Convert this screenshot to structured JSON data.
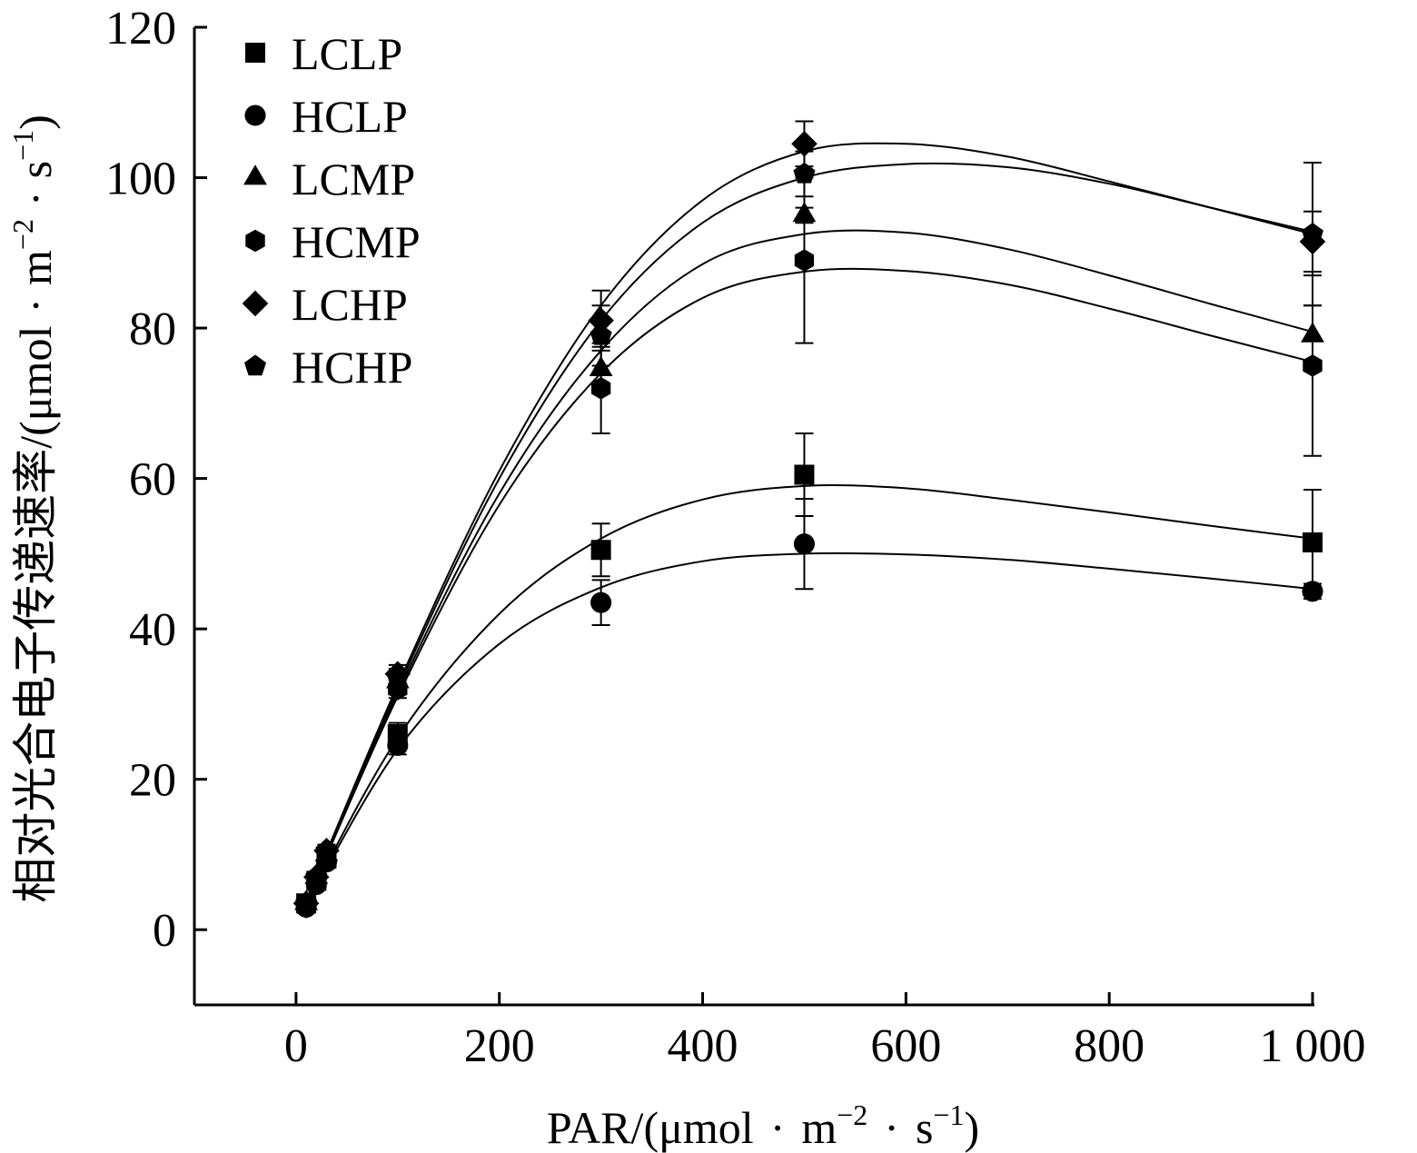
{
  "chart_data": {
    "type": "scatter",
    "xlabel_main": "PAR/(μmol",
    "xlabel_dot": "·",
    "xlabel_unit_m": "m",
    "xlabel_exp_m": "−2",
    "xlabel_unit_s": "s",
    "xlabel_exp_s": "−1",
    "xlabel_close": ")",
    "ylabel_main": "相对光合电子传递速率/(μmol",
    "ylabel_dot": "·",
    "ylabel_unit_m": "m",
    "ylabel_exp_m": "−2",
    "ylabel_unit_s": "s",
    "ylabel_exp_s": "−1",
    "ylabel_close": ")",
    "xlim": [
      -100,
      1000
    ],
    "ylim": [
      -10,
      120
    ],
    "x_ticks": [
      0,
      200,
      400,
      600,
      800,
      1000
    ],
    "x_tick_labels": [
      "0",
      "200",
      "400",
      "600",
      "800",
      "1 000"
    ],
    "y_ticks": [
      0,
      20,
      40,
      60,
      80,
      100,
      120
    ],
    "y_tick_labels": [
      "0",
      "20",
      "40",
      "60",
      "80",
      "100",
      "120"
    ],
    "grid": false,
    "legend_position": "top-left",
    "series": [
      {
        "name": "LCLP",
        "marker": "square",
        "x": [
          10,
          20,
          30,
          100,
          300,
          500,
          1000
        ],
        "y": [
          3.5,
          6.5,
          9.5,
          26,
          50.5,
          60.5,
          51.5
        ],
        "err": [
          0.5,
          0.5,
          0.8,
          1.5,
          3.5,
          5.5,
          7.0
        ],
        "fit": [
          [
            10,
            3.5
          ],
          [
            100,
            25.5
          ],
          [
            200,
            42
          ],
          [
            300,
            52
          ],
          [
            400,
            57.2
          ],
          [
            500,
            59
          ],
          [
            600,
            58.7
          ],
          [
            700,
            57.2
          ],
          [
            800,
            55.5
          ],
          [
            900,
            53.7
          ],
          [
            1000,
            52
          ]
        ]
      },
      {
        "name": "HCLP",
        "marker": "circle",
        "x": [
          10,
          20,
          30,
          100,
          300,
          500,
          1000
        ],
        "y": [
          3.0,
          6.0,
          9.0,
          24.5,
          43.5,
          51.3,
          45.0
        ],
        "err": [
          0.5,
          0.5,
          0.8,
          1.2,
          3.0,
          6.0,
          1.0
        ],
        "fit": [
          [
            10,
            3.3
          ],
          [
            100,
            24
          ],
          [
            200,
            38
          ],
          [
            300,
            45.5
          ],
          [
            400,
            49
          ],
          [
            500,
            50
          ],
          [
            600,
            49.9
          ],
          [
            700,
            49.2
          ],
          [
            800,
            48
          ],
          [
            900,
            46.7
          ],
          [
            1000,
            45.3
          ]
        ]
      },
      {
        "name": "LCMP",
        "marker": "triangle",
        "x": [
          10,
          20,
          30,
          100,
          300,
          500,
          1000
        ],
        "y": [
          3.5,
          7.0,
          10.0,
          33.0,
          74.5,
          95.0,
          79.0
        ],
        "err": [
          0.5,
          0.5,
          0.8,
          1.2,
          3.0,
          1.0,
          4.0
        ],
        "fit": [
          [
            10,
            3.8
          ],
          [
            100,
            31.5
          ],
          [
            200,
            58
          ],
          [
            300,
            77
          ],
          [
            400,
            88.5
          ],
          [
            500,
            92.5
          ],
          [
            600,
            92.7
          ],
          [
            700,
            90.5
          ],
          [
            800,
            87
          ],
          [
            900,
            83.2
          ],
          [
            1000,
            79.5
          ]
        ]
      },
      {
        "name": "HCMP",
        "marker": "hexagon",
        "x": [
          10,
          20,
          30,
          100,
          300,
          500,
          1000
        ],
        "y": [
          3.0,
          6.5,
          9.5,
          32.0,
          72.0,
          89.0,
          75.0
        ],
        "err": [
          0.5,
          0.5,
          0.8,
          1.2,
          6.0,
          11.0,
          12.0
        ],
        "fit": [
          [
            10,
            3.5
          ],
          [
            100,
            31
          ],
          [
            200,
            56.5
          ],
          [
            300,
            74
          ],
          [
            400,
            84
          ],
          [
            500,
            87.5
          ],
          [
            600,
            87.6
          ],
          [
            700,
            85.8
          ],
          [
            800,
            82.6
          ],
          [
            900,
            79
          ],
          [
            1000,
            75.5
          ]
        ]
      },
      {
        "name": "LCHP",
        "marker": "diamond",
        "x": [
          10,
          20,
          30,
          100,
          300,
          500,
          1000
        ],
        "y": [
          3.5,
          7.0,
          10.5,
          34.0,
          81.0,
          104.5,
          91.5
        ],
        "err": [
          0.5,
          0.5,
          0.8,
          1.2,
          4.0,
          3.0,
          4.0
        ],
        "fit": [
          [
            10,
            3.8
          ],
          [
            100,
            32.5
          ],
          [
            200,
            61
          ],
          [
            300,
            83
          ],
          [
            400,
            97
          ],
          [
            500,
            103.5
          ],
          [
            600,
            104.5
          ],
          [
            700,
            102.8
          ],
          [
            800,
            99.5
          ],
          [
            900,
            96
          ],
          [
            1000,
            92.5
          ]
        ]
      },
      {
        "name": "HCHP",
        "marker": "pentagon",
        "x": [
          10,
          20,
          30,
          100,
          300,
          500,
          1000
        ],
        "y": [
          3.5,
          7.0,
          10.5,
          33.5,
          79.0,
          100.5,
          92.5
        ],
        "err": [
          0.5,
          0.5,
          0.8,
          1.2,
          4.0,
          3.0,
          9.5
        ],
        "fit": [
          [
            10,
            3.7
          ],
          [
            100,
            32
          ],
          [
            200,
            60
          ],
          [
            300,
            81
          ],
          [
            400,
            94
          ],
          [
            500,
            100
          ],
          [
            600,
            101.8
          ],
          [
            700,
            101.4
          ],
          [
            800,
            99.2
          ],
          [
            900,
            96
          ],
          [
            1000,
            92.8
          ]
        ]
      }
    ]
  }
}
